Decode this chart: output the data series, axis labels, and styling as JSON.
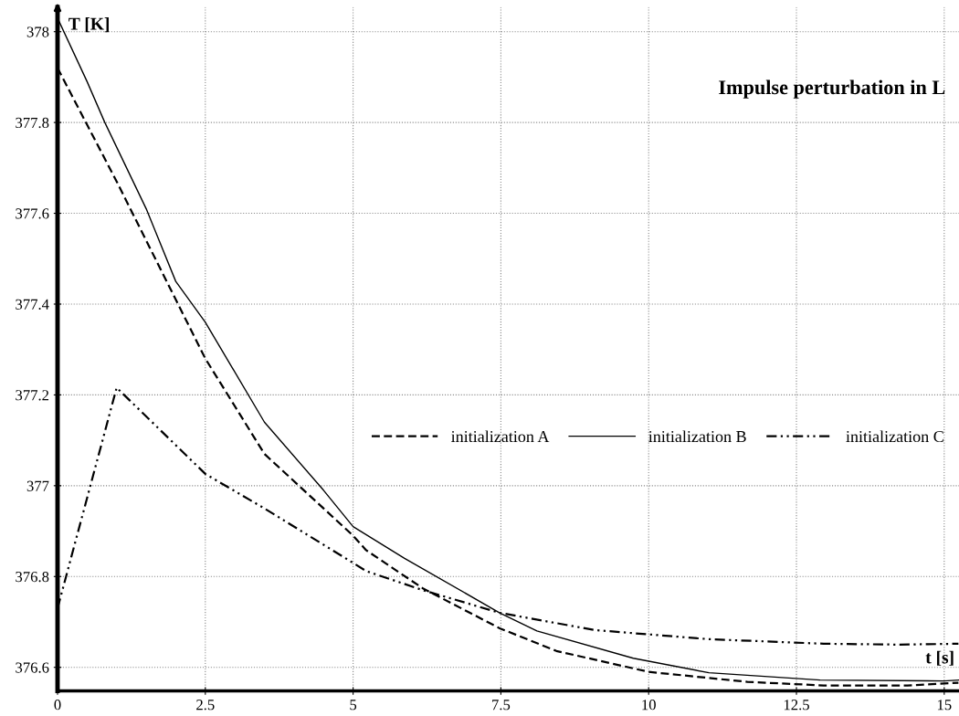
{
  "chart_data": {
    "type": "line",
    "title": "Impulse perturbation in L",
    "xlabel": "t [s]",
    "ylabel": "T [K]",
    "xlim": [
      0,
      15.25
    ],
    "ylim": [
      376.548,
      378.054
    ],
    "xticks": [
      0,
      2.5,
      5,
      7.5,
      10,
      12.5,
      15
    ],
    "yticks": [
      376.6,
      376.8,
      377,
      377.2,
      377.4,
      377.6,
      377.8,
      378
    ],
    "grid": true,
    "legend": "right",
    "marker": "none",
    "series": [
      {
        "name": "initialization A",
        "color": "#000000",
        "line_style": "dashed",
        "x": [
          0,
          1,
          2.5,
          3.5,
          5,
          5.22,
          6.18,
          7.48,
          8.44,
          10,
          11.67,
          12.96,
          14.38,
          15.24
        ],
        "values": [
          377.92,
          377.67,
          377.28,
          377.07,
          376.89,
          376.858,
          376.774,
          376.686,
          376.636,
          376.59,
          376.568,
          376.56,
          376.56,
          376.566
        ]
      },
      {
        "name": "initialization B",
        "color": "#000000",
        "line_style": "solid",
        "x": [
          0,
          0.5,
          0.8,
          1.5,
          2,
          2.5,
          3.5,
          4.5,
          5,
          5.87,
          7.48,
          8.11,
          9.74,
          11.02,
          12.9,
          15,
          15.25
        ],
        "values": [
          378.03,
          377.89,
          377.8,
          377.61,
          377.45,
          377.36,
          377.14,
          376.99,
          376.91,
          376.84,
          376.72,
          376.68,
          376.62,
          376.588,
          376.572,
          376.57,
          376.572
        ]
      },
      {
        "name": "initialization C",
        "color": "#000000",
        "line_style": "dashdotdot",
        "x": [
          0,
          1,
          2.5,
          3.5,
          5,
          5.22,
          6.18,
          7.48,
          9.09,
          11.02,
          12.96,
          14.25,
          15.24
        ],
        "values": [
          376.73,
          377.216,
          377.026,
          376.95,
          376.83,
          376.812,
          376.77,
          376.72,
          376.682,
          376.662,
          376.652,
          376.65,
          376.652
        ]
      }
    ]
  }
}
